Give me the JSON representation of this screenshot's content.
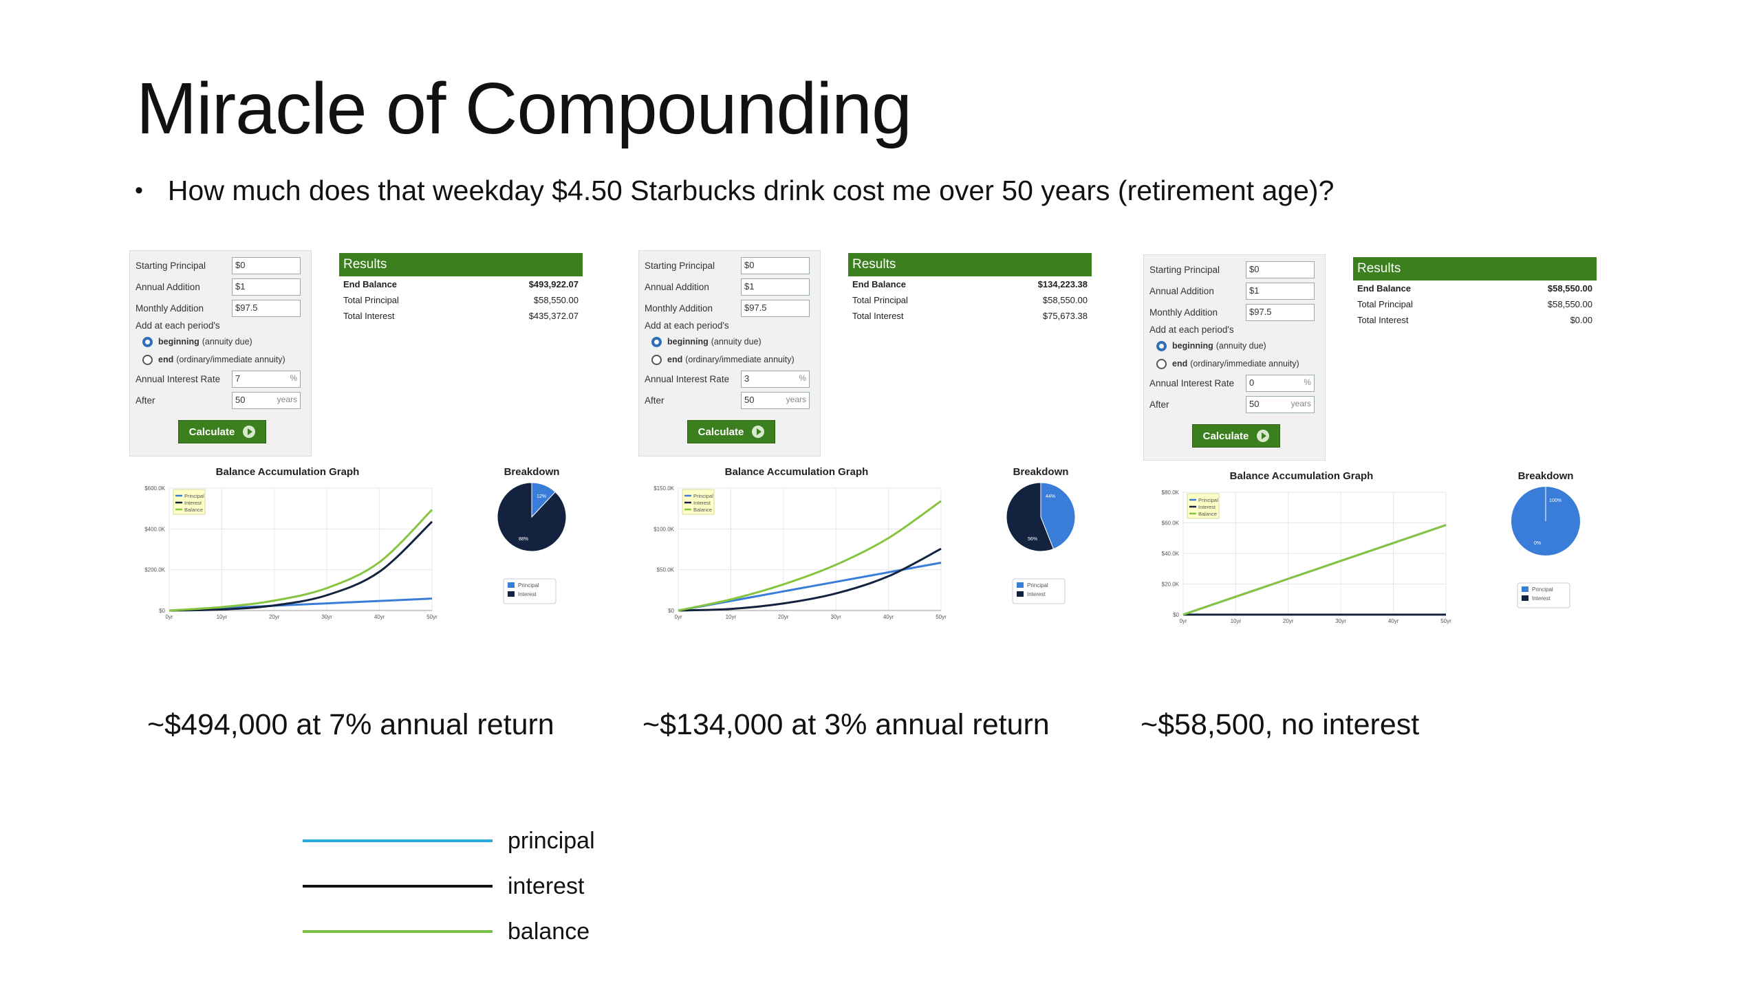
{
  "slide": {
    "title": "Miracle of Compounding",
    "bullet": "How much does that weekday $4.50 Starbucks drink cost me over 50 years (retirement age)?"
  },
  "form_labels": {
    "starting_principal": "Starting Principal",
    "annual_addition": "Annual Addition",
    "monthly_addition": "Monthly Addition",
    "add_at_each": "Add at each period's",
    "beginning": "beginning",
    "beginning_note": "(annuity due)",
    "end": "end",
    "end_note": "(ordinary/immediate annuity)",
    "annual_interest_rate": "Annual Interest Rate",
    "after": "After",
    "percent_suffix": "%",
    "years_suffix": "years",
    "calculate": "Calculate"
  },
  "results_labels": {
    "header": "Results",
    "end_balance": "End Balance",
    "total_principal": "Total Principal",
    "total_interest": "Total Interest"
  },
  "graph_labels": {
    "balance_graph_title": "Balance Accumulation Graph",
    "breakdown_title": "Breakdown",
    "legend_principal": "Principal",
    "legend_interest": "Interest",
    "legend_balance": "Balance",
    "pie_legend_principal": "Principal",
    "pie_legend_interest": "Interest",
    "x_ticks": [
      "0yr",
      "10yr",
      "20yr",
      "30yr",
      "40yr",
      "50yr"
    ]
  },
  "calculators": [
    {
      "inputs": {
        "starting_principal": "$0",
        "annual_addition": "$1",
        "monthly_addition": "$97.5",
        "rate": "7",
        "after": "50"
      },
      "results": {
        "end_balance": "$493,922.07",
        "total_principal": "$58,550.00",
        "total_interest": "$435,372.07"
      },
      "y_ticks": [
        "$600.0K",
        "$400.0K",
        "$200.0K",
        "$0"
      ],
      "pie": {
        "principal_label": "12%",
        "interest_label": "88%"
      },
      "caption": "~$494,000 at 7% annual return"
    },
    {
      "inputs": {
        "starting_principal": "$0",
        "annual_addition": "$1",
        "monthly_addition": "$97.5",
        "rate": "3",
        "after": "50"
      },
      "results": {
        "end_balance": "$134,223.38",
        "total_principal": "$58,550.00",
        "total_interest": "$75,673.38"
      },
      "y_ticks": [
        "$150.0K",
        "$100.0K",
        "$50.0K",
        "$0"
      ],
      "pie": {
        "principal_label": "44%",
        "interest_label": "56%"
      },
      "caption": "~$134,000 at 3% annual return"
    },
    {
      "inputs": {
        "starting_principal": "$0",
        "annual_addition": "$1",
        "monthly_addition": "$97.5",
        "rate": "0",
        "after": "50"
      },
      "results": {
        "end_balance": "$58,550.00",
        "total_principal": "$58,550.00",
        "total_interest": "$0.00"
      },
      "y_ticks": [
        "$80.0K",
        "$60.0K",
        "$40.0K",
        "$20.0K",
        "$0"
      ],
      "pie": {
        "principal_label": "100%",
        "interest_label": "0%"
      },
      "caption": "~$58,500, no interest"
    }
  ],
  "chart_data": [
    {
      "type": "line",
      "x": [
        0,
        10,
        20,
        30,
        40,
        50
      ],
      "ylim": [
        0,
        600000
      ],
      "series": [
        {
          "name": "Principal",
          "values": [
            0,
            11710,
            23420,
            35130,
            46840,
            58550
          ]
        },
        {
          "name": "Interest",
          "values": [
            0,
            5000,
            25000,
            75000,
            190000,
            435372
          ]
        },
        {
          "name": "Balance",
          "values": [
            0,
            16700,
            48500,
            110000,
            237000,
            493922
          ]
        }
      ]
    },
    {
      "type": "line",
      "x": [
        0,
        10,
        20,
        30,
        40,
        50
      ],
      "ylim": [
        0,
        150000
      ],
      "series": [
        {
          "name": "Principal",
          "values": [
            0,
            11710,
            23420,
            35130,
            46840,
            58550
          ]
        },
        {
          "name": "Interest",
          "values": [
            0,
            1900,
            8600,
            20900,
            42000,
            75673
          ]
        },
        {
          "name": "Balance",
          "values": [
            0,
            13600,
            32000,
            56000,
            88800,
            134223
          ]
        }
      ]
    },
    {
      "type": "line",
      "x": [
        0,
        10,
        20,
        30,
        40,
        50
      ],
      "ylim": [
        0,
        80000
      ],
      "series": [
        {
          "name": "Principal",
          "values": [
            0,
            11710,
            23420,
            35130,
            46840,
            58550
          ]
        },
        {
          "name": "Interest",
          "values": [
            0,
            0,
            0,
            0,
            0,
            0
          ]
        },
        {
          "name": "Balance",
          "values": [
            0,
            11710,
            23420,
            35130,
            46840,
            58550
          ]
        }
      ]
    },
    {
      "type": "pie",
      "categories": [
        "Principal",
        "Interest"
      ],
      "values": [
        12,
        88
      ]
    },
    {
      "type": "pie",
      "categories": [
        "Principal",
        "Interest"
      ],
      "values": [
        44,
        56
      ]
    },
    {
      "type": "pie",
      "categories": [
        "Principal",
        "Interest"
      ],
      "values": [
        100,
        0
      ]
    }
  ],
  "bottom_legend": {
    "principal": "principal",
    "interest": "interest",
    "balance": "balance"
  },
  "colors": {
    "principal": "#3a7dd8",
    "interest": "#13233f",
    "balance": "#86c440",
    "legend_principal": "#29abe2",
    "legend_interest": "#111111",
    "legend_balance": "#7ac143",
    "green_header": "#3c7f1e"
  }
}
